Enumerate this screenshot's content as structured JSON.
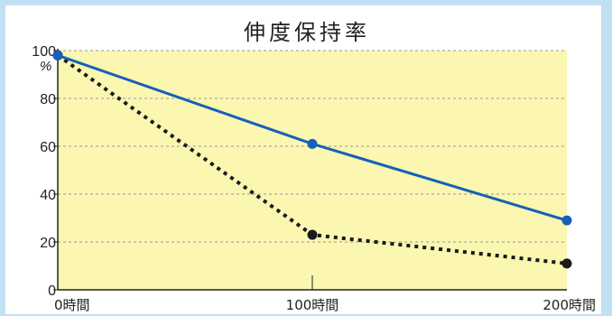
{
  "chart_data": {
    "type": "line",
    "title": "伸度保持率",
    "y_unit": "%",
    "categories": [
      "0時間",
      "100時間",
      "200時間"
    ],
    "x": [
      0,
      100,
      200
    ],
    "ylim": [
      0,
      100
    ],
    "yticks": [
      "0",
      "20",
      "40",
      "60",
      "80",
      "100"
    ],
    "grid": true,
    "legend": "none",
    "series": [
      {
        "color": "#1660b8",
        "style": "solid",
        "values": [
          98,
          61,
          29
        ]
      },
      {
        "color": "#1a1a1a",
        "style": "dotted",
        "values": [
          98,
          23,
          11
        ]
      }
    ],
    "colors": {
      "plot_background": "#fbf7b0",
      "outer_background": "#bfe1f2",
      "grid": "#9a9a9a"
    }
  }
}
